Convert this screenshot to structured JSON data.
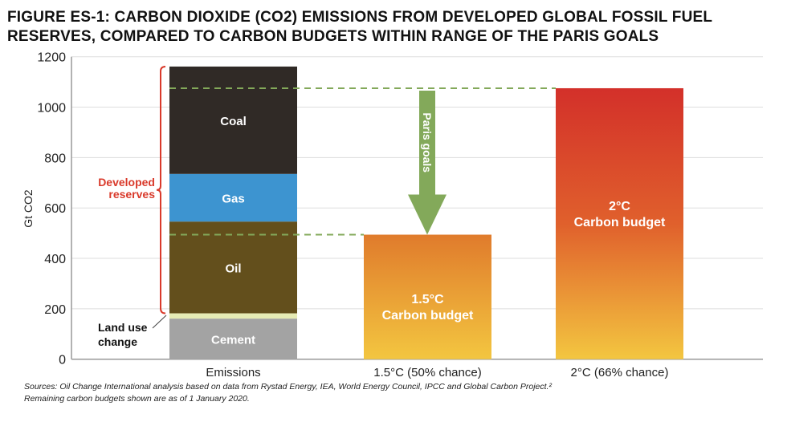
{
  "title_line1": "FIGURE ES-1: CARBON DIOXIDE (CO2) EMISSIONS FROM DEVELOPED GLOBAL FOSSIL FUEL",
  "title_line2": "RESERVES, COMPARED TO CARBON BUDGETS WITHIN RANGE OF THE PARIS GOALS",
  "sources_line1": "Sources: Oil Change International analysis based on data from Rystad Energy, IEA, World Energy Council, IPCC and Global Carbon Project.²",
  "sources_line2": "Remaining carbon budgets shown are as of 1 January 2020.",
  "chart_data": {
    "type": "bar",
    "ylabel": "Gt CO2",
    "ylim": [
      0,
      1200
    ],
    "yticks": [
      0,
      200,
      400,
      600,
      800,
      1000,
      1200
    ],
    "grid": true,
    "categories": [
      "Emissions",
      "1.5°C (50% chance)",
      "2°C (66% chance)"
    ],
    "emissions_stack": [
      {
        "name": "Cement",
        "value": 161,
        "color": "#a3a3a3",
        "label": "Cement"
      },
      {
        "name": "Land use change",
        "value": 21,
        "color": "#e6ebb4",
        "label": ""
      },
      {
        "name": "Oil",
        "value": 364,
        "color": "#634f1c",
        "label": "Oil"
      },
      {
        "name": "Gas",
        "value": 189,
        "color": "#3d94d0",
        "label": "Gas"
      },
      {
        "name": "Coal",
        "value": 426,
        "color": "#302a26",
        "label": "Coal"
      }
    ],
    "budgets": [
      {
        "category": "1.5°C (50% chance)",
        "value": 494,
        "label1": "1.5°C",
        "label2": "Carbon budget"
      },
      {
        "category": "2°C (66% chance)",
        "value": 1075,
        "label1": "2°C",
        "label2": "Carbon budget"
      }
    ],
    "annotations": {
      "developed_reserves": [
        "Developed",
        "reserves"
      ],
      "land_use": [
        "Land use",
        "change"
      ],
      "arrow": "Paris goals"
    },
    "colors": {
      "green": "#83a95a",
      "red": "#d93a2b"
    }
  }
}
